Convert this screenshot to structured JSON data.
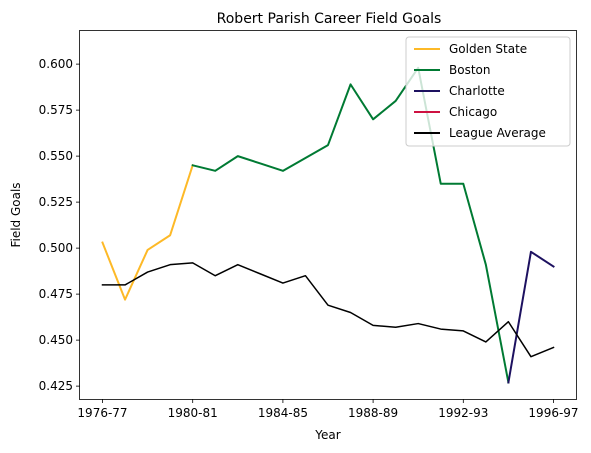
{
  "chart_data": {
    "type": "line",
    "title": "Robert Parish Career Field Goals",
    "xlabel": "Year",
    "ylabel": "Field Goals",
    "x": [
      "1976-77",
      "1977-78",
      "1978-79",
      "1979-80",
      "1980-81",
      "1981-82",
      "1982-83",
      "1983-84",
      "1984-85",
      "1985-86",
      "1986-87",
      "1987-88",
      "1988-89",
      "1989-90",
      "1990-91",
      "1991-92",
      "1992-93",
      "1993-94",
      "1994-95",
      "1995-96",
      "1996-97"
    ],
    "xticks": [
      "1976-77",
      "1980-81",
      "1984-85",
      "1988-89",
      "1992-93",
      "1996-97"
    ],
    "ylim": [
      0.418,
      0.618
    ],
    "yticks": [
      "0.425",
      "0.450",
      "0.475",
      "0.500",
      "0.525",
      "0.550",
      "0.575",
      "0.600"
    ],
    "grid": false,
    "legend_position": "top-right",
    "series": [
      {
        "name": "Golden State",
        "color": "#FDB927",
        "values": [
          0.503,
          0.472,
          0.499,
          0.507,
          0.545,
          null,
          null,
          null,
          null,
          null,
          null,
          null,
          null,
          null,
          null,
          null,
          null,
          null,
          null,
          null,
          null
        ]
      },
      {
        "name": "Boston",
        "color": "#007A33",
        "values": [
          null,
          null,
          null,
          null,
          0.545,
          0.542,
          0.55,
          0.546,
          0.542,
          0.549,
          0.556,
          0.589,
          0.57,
          0.58,
          0.598,
          0.535,
          0.535,
          0.491,
          0.427,
          null,
          null
        ]
      },
      {
        "name": "Charlotte",
        "color": "#1D1160",
        "values": [
          null,
          null,
          null,
          null,
          null,
          null,
          null,
          null,
          null,
          null,
          null,
          null,
          null,
          null,
          null,
          null,
          null,
          null,
          0.427,
          0.498,
          0.49
        ]
      },
      {
        "name": "Chicago",
        "color": "#CE1141",
        "values": [
          null,
          null,
          null,
          null,
          null,
          null,
          null,
          null,
          null,
          null,
          null,
          null,
          null,
          null,
          null,
          null,
          null,
          null,
          null,
          null,
          null
        ]
      },
      {
        "name": "League Average",
        "color": "#000000",
        "values": [
          0.48,
          0.48,
          0.487,
          0.491,
          0.492,
          0.485,
          0.491,
          0.486,
          0.481,
          0.485,
          0.469,
          0.465,
          0.458,
          0.457,
          0.459,
          0.456,
          0.455,
          0.449,
          0.46,
          0.441,
          0.446
        ]
      }
    ]
  }
}
